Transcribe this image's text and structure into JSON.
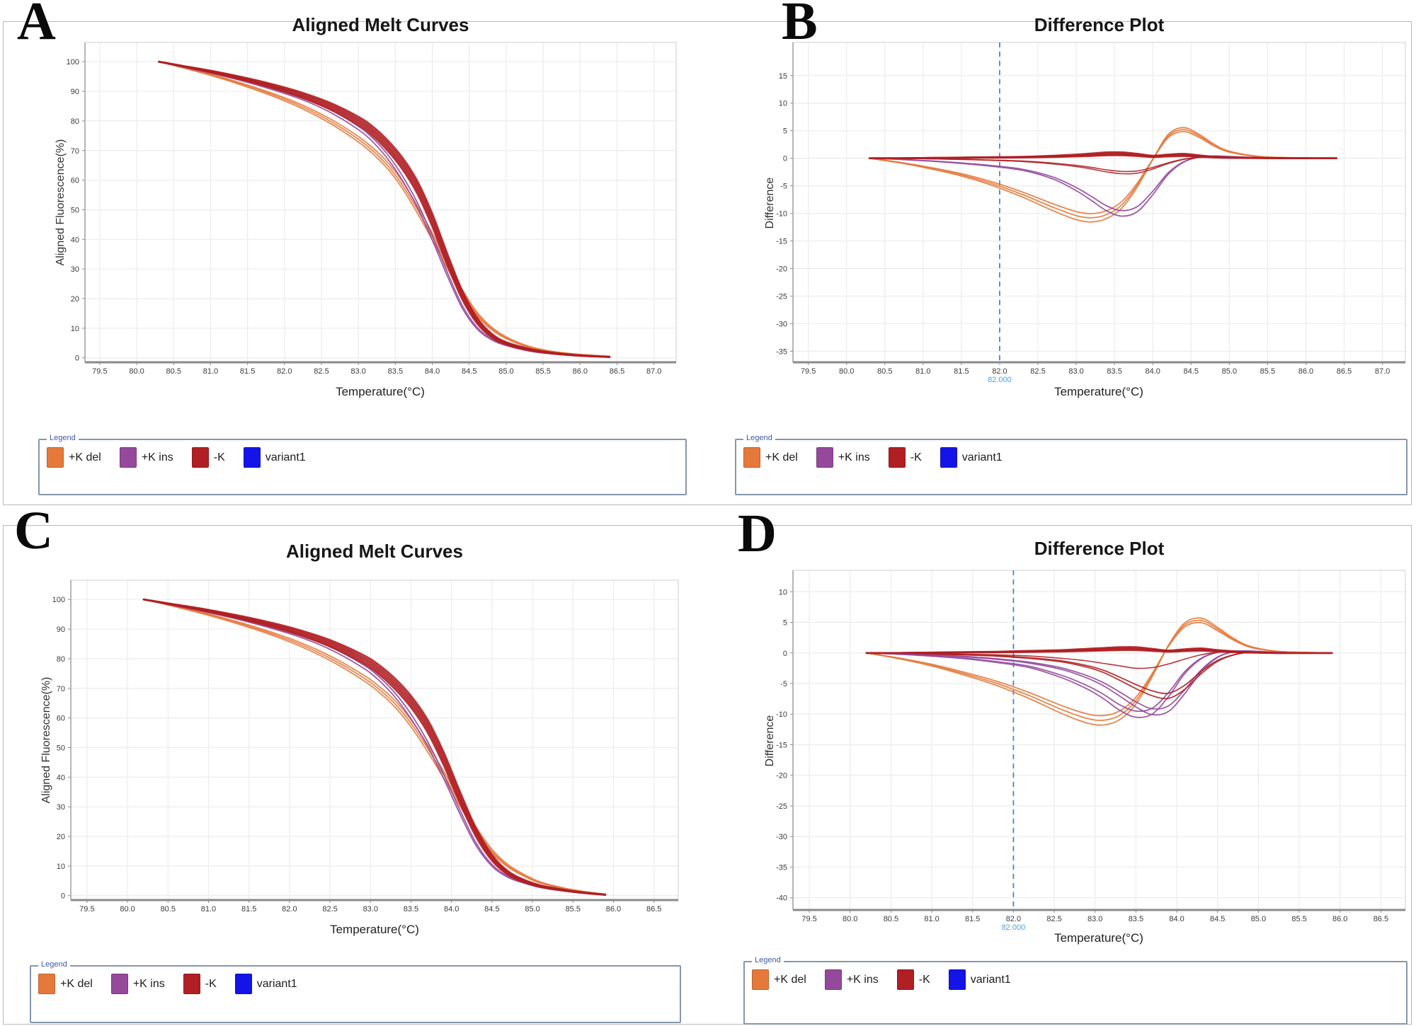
{
  "page": {
    "panels": [
      {
        "letter": "A"
      },
      {
        "letter": "B"
      },
      {
        "letter": "C"
      },
      {
        "letter": "D"
      }
    ]
  },
  "legend": {
    "title": "Legend",
    "items": [
      {
        "label": "+K del",
        "color": "#E5793B"
      },
      {
        "label": "+K ins",
        "color": "#94499B"
      },
      {
        "label": "-K",
        "color": "#B01F24"
      },
      {
        "label": "variant1",
        "color": "#1414E8"
      }
    ]
  },
  "colors": {
    "orange": "#E5793B",
    "purple": "#94499B",
    "red": "#B01F24",
    "blue": "#1414E8"
  },
  "chart_data": [
    {
      "id": "A",
      "type": "melt",
      "title": "Aligned Melt Curves",
      "xlabel": "Temperature(°C)",
      "ylabel": "Aligned Fluorescence(%)",
      "xlim": [
        79.3,
        87.3
      ],
      "ylim": [
        -1.5,
        106.5
      ],
      "xticks": {
        "min": 79.5,
        "max": 87.0,
        "step": 0.5,
        "decimals": 1
      },
      "yticks": {
        "min": 0,
        "max": 100,
        "step": 10,
        "decimals": 0
      },
      "grid": true,
      "legend_position": "bottom",
      "series": [
        {
          "name": "+K del",
          "color": "orange",
          "width": 1.8,
          "replicates": 3,
          "spread": 1.2,
          "x": [
            80.3,
            80.6,
            81.0,
            81.4,
            81.8,
            82.2,
            82.6,
            83.0,
            83.2,
            83.4,
            83.6,
            83.8,
            84.0,
            84.2,
            84.4,
            84.6,
            84.8,
            85.0,
            85.3,
            85.6,
            86.0,
            86.4
          ],
          "y": [
            100,
            98.2,
            95.6,
            92.6,
            89.2,
            85.2,
            80.2,
            73.8,
            69.8,
            64.8,
            58.2,
            50,
            41,
            31.5,
            22.5,
            15,
            10,
            6.8,
            3.8,
            2.2,
            1.1,
            0.5
          ]
        },
        {
          "name": "+K ins",
          "color": "purple",
          "width": 1.8,
          "replicates": 2,
          "spread": 0.8,
          "x": [
            80.3,
            80.6,
            81.0,
            81.4,
            81.8,
            82.2,
            82.6,
            83.0,
            83.2,
            83.4,
            83.6,
            83.8,
            84.0,
            84.2,
            84.4,
            84.6,
            84.8,
            85.0,
            85.3,
            85.6,
            86.0,
            86.4
          ],
          "y": [
            100,
            98.4,
            96.3,
            93.9,
            91.1,
            87.9,
            83.6,
            77.6,
            73.4,
            67.8,
            60.5,
            51.5,
            40.5,
            28.5,
            17.5,
            10.2,
            6.3,
            4.3,
            2.4,
            1.4,
            0.6,
            0.3
          ]
        },
        {
          "name": "-K",
          "color": "red",
          "width": 2.6,
          "replicates": 5,
          "spread": 2.2,
          "x": [
            80.3,
            80.6,
            81.0,
            81.4,
            81.8,
            82.2,
            82.6,
            83.0,
            83.2,
            83.4,
            83.6,
            83.8,
            84.0,
            84.2,
            84.4,
            84.6,
            84.8,
            85.0,
            85.3,
            85.6,
            86.0,
            86.4
          ],
          "y": [
            100,
            98.6,
            96.7,
            94.5,
            92,
            89,
            85.2,
            80,
            76.4,
            71.6,
            65.5,
            57.5,
            46.5,
            33.5,
            21.5,
            12.8,
            7.6,
            4.9,
            2.9,
            1.7,
            0.8,
            0.3
          ]
        }
      ]
    },
    {
      "id": "B",
      "type": "diff",
      "title": "Difference Plot",
      "xlabel": "Temperature(°C)",
      "ylabel": "Difference",
      "xlim": [
        79.3,
        87.3
      ],
      "ylim": [
        -37,
        21
      ],
      "xticks": {
        "min": 79.5,
        "max": 87.0,
        "step": 0.5,
        "decimals": 1
      },
      "yticks": {
        "min": -35,
        "max": 15,
        "step": 5,
        "decimals": 0
      },
      "grid": true,
      "legend_position": "bottom",
      "threshold": {
        "x": 82.0,
        "label": "82.000"
      },
      "series": [
        {
          "name": "+K del",
          "color": "orange",
          "width": 1.8,
          "replicates": 3,
          "spread": 0.07,
          "x": [
            80.3,
            80.7,
            81.1,
            81.5,
            81.9,
            82.3,
            82.7,
            83.0,
            83.2,
            83.4,
            83.6,
            83.8,
            84.0,
            84.2,
            84.4,
            84.6,
            84.8,
            85.0,
            85.4,
            85.8,
            86.4
          ],
          "y": [
            0,
            -0.8,
            -1.8,
            -3.0,
            -4.6,
            -6.6,
            -8.9,
            -10.4,
            -10.8,
            -10.2,
            -8.4,
            -4.8,
            -0.2,
            4.0,
            5.2,
            4.1,
            2.4,
            1.2,
            0.3,
            0.1,
            0
          ]
        },
        {
          "name": "+K ins",
          "color": "purple",
          "width": 1.8,
          "replicates": 2,
          "spread": 0.05,
          "x": [
            80.3,
            80.7,
            81.1,
            81.5,
            81.9,
            82.3,
            82.7,
            83.0,
            83.2,
            83.4,
            83.6,
            83.8,
            84.0,
            84.2,
            84.4,
            84.6,
            84.8,
            85.0,
            85.4,
            85.8,
            86.4
          ],
          "y": [
            0,
            -0.2,
            -0.5,
            -0.9,
            -1.4,
            -2.1,
            -3.6,
            -5.6,
            -7.3,
            -9.1,
            -10,
            -9.2,
            -6.3,
            -2.8,
            -0.7,
            0.2,
            0.4,
            0.3,
            0.1,
            0,
            0
          ]
        },
        {
          "name": "-K",
          "color": "red",
          "width": 2.6,
          "replicates": 4,
          "spread": 0.35,
          "x": [
            80.3,
            80.7,
            81.1,
            81.5,
            81.9,
            82.3,
            82.7,
            83.0,
            83.2,
            83.4,
            83.6,
            83.8,
            84.0,
            84.2,
            84.4,
            84.6,
            84.8,
            85.0,
            85.4,
            85.8,
            86.4
          ],
          "y": [
            0,
            0,
            0.05,
            0.1,
            0.15,
            0.2,
            0.35,
            0.5,
            0.65,
            0.8,
            0.8,
            0.6,
            0.35,
            0.5,
            0.6,
            0.4,
            0.2,
            0.1,
            0.05,
            0,
            0
          ]
        },
        {
          "name": "-K",
          "color": "red",
          "width": 1.6,
          "replicates": 2,
          "spread": 0.08,
          "x": [
            80.3,
            80.7,
            81.1,
            81.5,
            81.9,
            82.3,
            82.7,
            83.0,
            83.2,
            83.4,
            83.6,
            83.8,
            84.0,
            84.2,
            84.4,
            84.6,
            84.8,
            85.0,
            85.4,
            85.8,
            86.4
          ],
          "y": [
            0,
            0,
            -0.1,
            -0.2,
            -0.35,
            -0.55,
            -0.95,
            -1.4,
            -1.8,
            -2.3,
            -2.6,
            -2.5,
            -1.8,
            -0.9,
            -0.2,
            0.15,
            0.2,
            0.1,
            0,
            0,
            0
          ]
        }
      ]
    },
    {
      "id": "C",
      "type": "melt",
      "title": "Aligned Melt Curves",
      "xlabel": "Temperature(°C)",
      "ylabel": "Aligned Fluorescence(%)",
      "xlim": [
        79.3,
        86.8
      ],
      "ylim": [
        -1.5,
        106.5
      ],
      "xticks": {
        "min": 79.5,
        "max": 86.5,
        "step": 0.5,
        "decimals": 1
      },
      "yticks": {
        "min": 0,
        "max": 100,
        "step": 10,
        "decimals": 0
      },
      "grid": true,
      "legend_position": "bottom",
      "series": [
        {
          "name": "+K del",
          "color": "orange",
          "width": 1.8,
          "replicates": 3,
          "spread": 1.2,
          "x": [
            80.2,
            80.5,
            80.9,
            81.3,
            81.7,
            82.1,
            82.5,
            82.9,
            83.1,
            83.3,
            83.5,
            83.7,
            83.9,
            84.1,
            84.3,
            84.5,
            84.7,
            84.9,
            85.1,
            85.4,
            85.7,
            85.9
          ],
          "y": [
            100,
            98.2,
            95.6,
            92.6,
            89.2,
            85.2,
            80.2,
            73.8,
            69.8,
            64.8,
            58.2,
            50,
            41,
            31.5,
            22.5,
            15,
            10,
            6.8,
            4.4,
            2.4,
            1.1,
            0.5
          ]
        },
        {
          "name": "+K ins",
          "color": "purple",
          "width": 1.8,
          "replicates": 2,
          "spread": 0.8,
          "x": [
            80.2,
            80.5,
            80.9,
            81.3,
            81.7,
            82.1,
            82.5,
            82.9,
            83.1,
            83.3,
            83.5,
            83.7,
            83.9,
            84.1,
            84.3,
            84.5,
            84.7,
            84.9,
            85.1,
            85.4,
            85.7,
            85.9
          ],
          "y": [
            100,
            98.4,
            96.3,
            93.9,
            91.1,
            87.9,
            83.6,
            77.6,
            73.4,
            67.8,
            60.5,
            51.5,
            40.5,
            28.5,
            17.5,
            10.2,
            6.3,
            4.3,
            2.8,
            1.5,
            0.6,
            0.3
          ]
        },
        {
          "name": "-K",
          "color": "red",
          "width": 2.6,
          "replicates": 5,
          "spread": 2.2,
          "x": [
            80.2,
            80.5,
            80.9,
            81.3,
            81.7,
            82.1,
            82.5,
            82.9,
            83.1,
            83.3,
            83.5,
            83.7,
            83.9,
            84.1,
            84.3,
            84.5,
            84.7,
            84.9,
            85.1,
            85.4,
            85.7,
            85.9
          ],
          "y": [
            100,
            98.6,
            96.7,
            94.5,
            92,
            89,
            85.2,
            80,
            76.4,
            71.6,
            65.5,
            57.5,
            46.5,
            33.5,
            21.5,
            12.8,
            7.6,
            4.9,
            3.2,
            1.8,
            0.8,
            0.3
          ]
        }
      ]
    },
    {
      "id": "D",
      "type": "diff",
      "title": "Difference Plot",
      "xlabel": "Temperature(°C)",
      "ylabel": "Difference",
      "xlim": [
        79.3,
        86.8
      ],
      "ylim": [
        -42,
        13.5
      ],
      "xticks": {
        "min": 79.5,
        "max": 86.5,
        "step": 0.5,
        "decimals": 1
      },
      "yticks": {
        "min": -40,
        "max": 10,
        "step": 5,
        "decimals": 0
      },
      "grid": true,
      "legend_position": "bottom",
      "threshold": {
        "x": 82.0,
        "label": "82.000"
      },
      "series": [
        {
          "name": "+K del",
          "color": "orange",
          "width": 1.8,
          "replicates": 3,
          "spread": 0.07,
          "x": [
            80.2,
            80.6,
            81.0,
            81.4,
            81.8,
            82.2,
            82.6,
            82.9,
            83.1,
            83.3,
            83.5,
            83.7,
            83.9,
            84.1,
            84.3,
            84.5,
            84.7,
            84.9,
            85.2,
            85.5,
            85.9
          ],
          "y": [
            0,
            -0.9,
            -2.0,
            -3.4,
            -5.0,
            -7.0,
            -9.3,
            -10.7,
            -11.0,
            -10.2,
            -7.8,
            -3.6,
            1.2,
            4.6,
            5.3,
            3.9,
            2.2,
            1.0,
            0.3,
            0.1,
            0
          ]
        },
        {
          "name": "+K ins",
          "color": "purple",
          "width": 1.8,
          "replicates": 2,
          "spread": 0.05,
          "x": [
            80.2,
            80.6,
            81.0,
            81.4,
            81.8,
            82.2,
            82.6,
            82.9,
            83.1,
            83.3,
            83.5,
            83.7,
            83.9,
            84.1,
            84.3,
            84.5,
            84.7,
            84.9,
            85.2,
            85.5,
            85.9
          ],
          "y": [
            0,
            -0.2,
            -0.5,
            -0.9,
            -1.5,
            -2.3,
            -3.9,
            -5.6,
            -7.1,
            -8.9,
            -10,
            -9.5,
            -6.8,
            -3.2,
            -0.9,
            0.1,
            0.3,
            0.2,
            0.1,
            0,
            0
          ]
        },
        {
          "name": "+K ins",
          "color": "purple",
          "width": 1.8,
          "replicates": 2,
          "spread": 0.05,
          "x": [
            80.2,
            80.6,
            81.0,
            81.4,
            81.8,
            82.2,
            82.6,
            82.9,
            83.1,
            83.3,
            83.5,
            83.7,
            83.9,
            84.1,
            84.3,
            84.5,
            84.7,
            84.9,
            85.2,
            85.5,
            85.9
          ],
          "y": [
            0,
            -0.1,
            -0.3,
            -0.6,
            -1.0,
            -1.6,
            -2.6,
            -3.9,
            -5.1,
            -6.7,
            -8.4,
            -9.6,
            -9.1,
            -6.3,
            -2.9,
            -0.7,
            0.2,
            0.3,
            0.1,
            0,
            0
          ]
        },
        {
          "name": "-K",
          "color": "red",
          "width": 1.8,
          "replicates": 2,
          "spread": 0.06,
          "x": [
            80.2,
            80.6,
            81.0,
            81.4,
            81.8,
            82.2,
            82.6,
            82.9,
            83.1,
            83.3,
            83.5,
            83.7,
            83.9,
            84.1,
            84.3,
            84.5,
            84.7,
            84.9,
            85.2,
            85.5,
            85.9
          ],
          "y": [
            0,
            0,
            -0.15,
            -0.3,
            -0.5,
            -0.85,
            -1.4,
            -2.2,
            -3.0,
            -4.2,
            -5.5,
            -6.6,
            -7.0,
            -5.6,
            -3.2,
            -1.3,
            -0.3,
            0.1,
            0,
            0,
            0
          ]
        },
        {
          "name": "-K",
          "color": "red",
          "width": 1.6,
          "replicates": 1,
          "spread": 0,
          "x": [
            80.2,
            80.6,
            81.0,
            81.4,
            81.8,
            82.2,
            82.6,
            82.9,
            83.1,
            83.3,
            83.5,
            83.7,
            83.9,
            84.1,
            84.3,
            84.5,
            84.7,
            84.9,
            85.2,
            85.5,
            85.9
          ],
          "y": [
            0,
            0,
            -0.1,
            -0.2,
            -0.3,
            -0.5,
            -0.9,
            -1.3,
            -1.7,
            -2.1,
            -2.5,
            -2.4,
            -1.8,
            -1.0,
            -0.3,
            0.1,
            0.1,
            0,
            0,
            0,
            0
          ]
        },
        {
          "name": "-K",
          "color": "red",
          "width": 2.6,
          "replicates": 4,
          "spread": 0.35,
          "x": [
            80.2,
            80.6,
            81.0,
            81.4,
            81.8,
            82.2,
            82.6,
            82.9,
            83.1,
            83.3,
            83.5,
            83.7,
            83.9,
            84.1,
            84.3,
            84.5,
            84.7,
            84.9,
            85.2,
            85.5,
            85.9
          ],
          "y": [
            0,
            0,
            0.05,
            0.1,
            0.15,
            0.25,
            0.35,
            0.5,
            0.6,
            0.7,
            0.7,
            0.5,
            0.3,
            0.45,
            0.55,
            0.35,
            0.2,
            0.1,
            0,
            0,
            0
          ]
        }
      ]
    }
  ]
}
